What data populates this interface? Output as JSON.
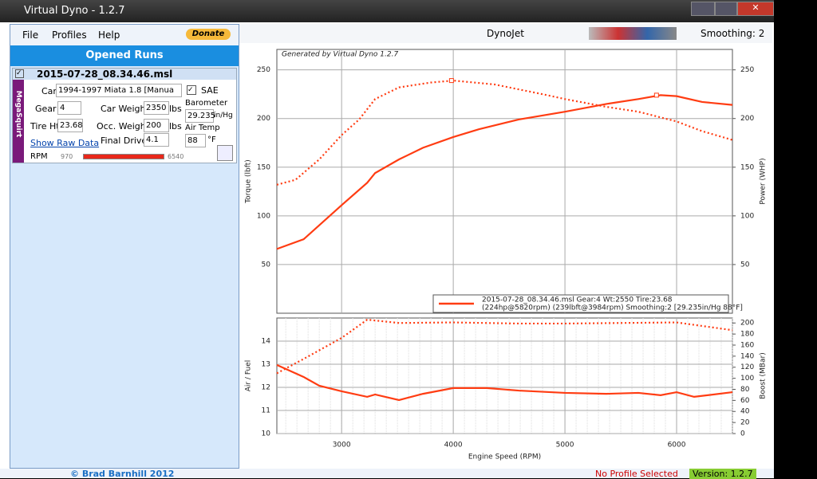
{
  "window": {
    "title": "Virtual Dyno - 1.2.7"
  },
  "menu": {
    "items": [
      "File",
      "Profiles",
      "Help"
    ],
    "donate": "Donate"
  },
  "runs_panel": {
    "title": "Opened Runs",
    "run": {
      "file": "2015-07-28_08.34.46.msl",
      "ecu": "MegaSquirt",
      "car_label": "Car",
      "car": "1994-1997 Miata 1.8 [Manua",
      "gear_label": "Gear",
      "gear": "4",
      "car_weight_label": "Car Weight",
      "car_weight": "2350",
      "lbs": "lbs",
      "occ_weight_label": "Occ. Weight",
      "occ_weight": "200",
      "tire_label": "Tire Ht",
      "tire": "23.68",
      "final_drive_label": "Final Drive",
      "final_drive": "4.1",
      "sae": "SAE",
      "barometer_label": "Barometer",
      "barometer": "29.235",
      "barometer_unit": "in/Hg",
      "air_temp_label": "Air Temp",
      "air_temp": "88",
      "air_temp_unit": "°F",
      "raw_data": "Show Raw Data",
      "rpm_label": "RPM",
      "rpm_min": "970",
      "rpm_max": "6540"
    }
  },
  "toolbar": {
    "profile": "DynoJet",
    "smoothing": "Smoothing: 2"
  },
  "status": {
    "copyright": "© Brad Barnhill 2012",
    "profile": "No Profile Selected",
    "version": "Version: 1.2.7"
  },
  "chart_data": [
    {
      "type": "line",
      "watermark": "Generated by Virtual Dyno 1.2.7",
      "y_label": "Torque (lbft)",
      "y2_label": "Power (WHP)",
      "xlim": [
        2420,
        6500
      ],
      "xticks": [
        3000,
        4000,
        5000,
        6000
      ],
      "ylim": [
        0,
        271
      ],
      "yticks": [
        50,
        100,
        150,
        200,
        250
      ],
      "y2lim": [
        0,
        271
      ],
      "y2ticks": [
        50,
        100,
        150,
        200,
        250
      ],
      "grid": true,
      "legend": [
        "2015-07-28_08.34.46.msl Gear:4 Wt:2550 Tire:23.68",
        "(224hp@5820rpm) (239lbft@3984rpm) Smoothing:2 [29.235in/Hg 88°F]"
      ],
      "series": [
        {
          "color": "#ff3c12",
          "style": "dotted",
          "x": [
            2420,
            2586,
            2800,
            3000,
            3157,
            3300,
            3514,
            3800,
            4000,
            4371,
            4800,
            5000,
            5371,
            5657,
            6000,
            6229,
            6500
          ],
          "values": [
            132,
            137,
            158,
            183,
            199,
            220,
            232,
            237,
            239,
            235,
            225,
            220,
            212,
            207,
            197,
            187,
            178
          ]
        },
        {
          "color": "#ff3c12",
          "style": "solid",
          "axis": "y2",
          "x": [
            2420,
            2660,
            3000,
            3229,
            3300,
            3514,
            3729,
            4000,
            4229,
            4586,
            5000,
            5371,
            5657,
            5857,
            6000,
            6229,
            6500
          ],
          "values": [
            66,
            76,
            111,
            134,
            144,
            158,
            170,
            181,
            189,
            199,
            207,
            215,
            220,
            224,
            223,
            217,
            214
          ]
        }
      ],
      "markers": [
        {
          "x": 3984,
          "y": 239
        },
        {
          "x": 5820,
          "y": 224
        }
      ]
    },
    {
      "type": "line",
      "x_label": "Engine Speed (RPM)",
      "y_label": "Air / Fuel",
      "y2_label": "Boost (MBar)",
      "xlim": [
        2420,
        6500
      ],
      "xticks": [
        3000,
        4000,
        5000,
        6000
      ],
      "ylim": [
        10,
        15
      ],
      "yticks": [
        10,
        11,
        12,
        13,
        14
      ],
      "y2lim": [
        0,
        209
      ],
      "y2ticks": [
        0,
        20,
        40,
        60,
        80,
        100,
        120,
        140,
        160,
        180,
        200
      ],
      "grid": true,
      "series": [
        {
          "color": "#ff3c12",
          "style": "solid",
          "x": [
            2420,
            2660,
            2800,
            3000,
            3229,
            3300,
            3514,
            3729,
            4000,
            4300,
            4586,
            5000,
            5371,
            5657,
            5857,
            6000,
            6157,
            6500
          ],
          "values": [
            12.97,
            12.45,
            12.07,
            11.83,
            11.59,
            11.69,
            11.45,
            11.72,
            11.97,
            11.97,
            11.86,
            11.76,
            11.72,
            11.76,
            11.66,
            11.79,
            11.59,
            11.79
          ]
        },
        {
          "color": "#ff3c12",
          "style": "dotted",
          "axis": "y2",
          "x": [
            2420,
            2660,
            3000,
            3229,
            3514,
            4000,
            4586,
            5000,
            6000,
            6500
          ],
          "values": [
            109,
            135,
            173,
            206,
            200,
            201,
            199,
            199,
            201,
            187
          ]
        }
      ]
    }
  ]
}
